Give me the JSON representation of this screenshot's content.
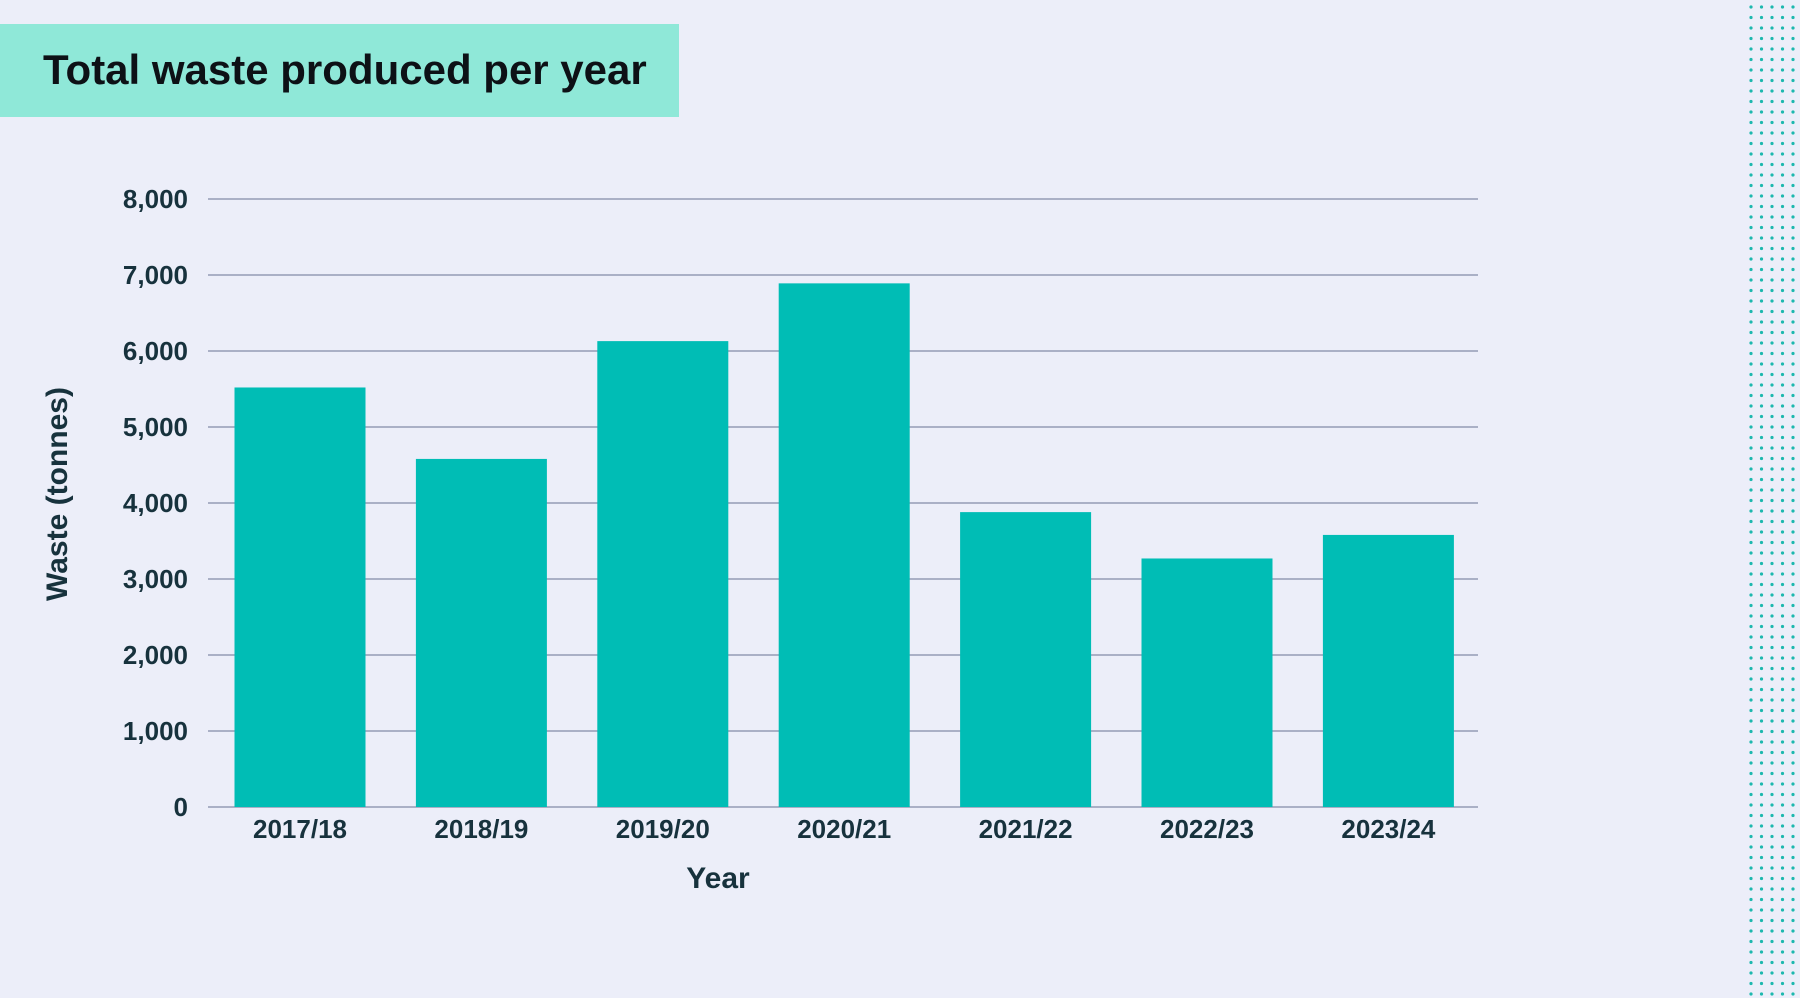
{
  "title": "Total waste produced per year",
  "colors": {
    "background": "#eceef9",
    "title_box": "#8fe8d8",
    "bar": "#00bdb5",
    "grid": "#aab0c6",
    "text": "#17323d",
    "dots": "#1db8ae"
  },
  "chart_data": {
    "type": "bar",
    "title": "Total waste produced per year",
    "xlabel": "Year",
    "ylabel": "Waste (tonnes)",
    "categories": [
      "2017/18",
      "2018/19",
      "2019/20",
      "2020/21",
      "2021/22",
      "2022/23",
      "2023/24"
    ],
    "values": [
      5520,
      4580,
      6130,
      6890,
      3880,
      3270,
      3580
    ],
    "ylim": [
      0,
      8000
    ],
    "yticks": [
      0,
      1000,
      2000,
      3000,
      4000,
      5000,
      6000,
      7000,
      8000
    ],
    "ytick_labels": [
      "0",
      "1,000",
      "2,000",
      "3,000",
      "4,000",
      "5,000",
      "6,000",
      "7,000",
      "8,000"
    ],
    "grid": true,
    "legend": "none"
  }
}
